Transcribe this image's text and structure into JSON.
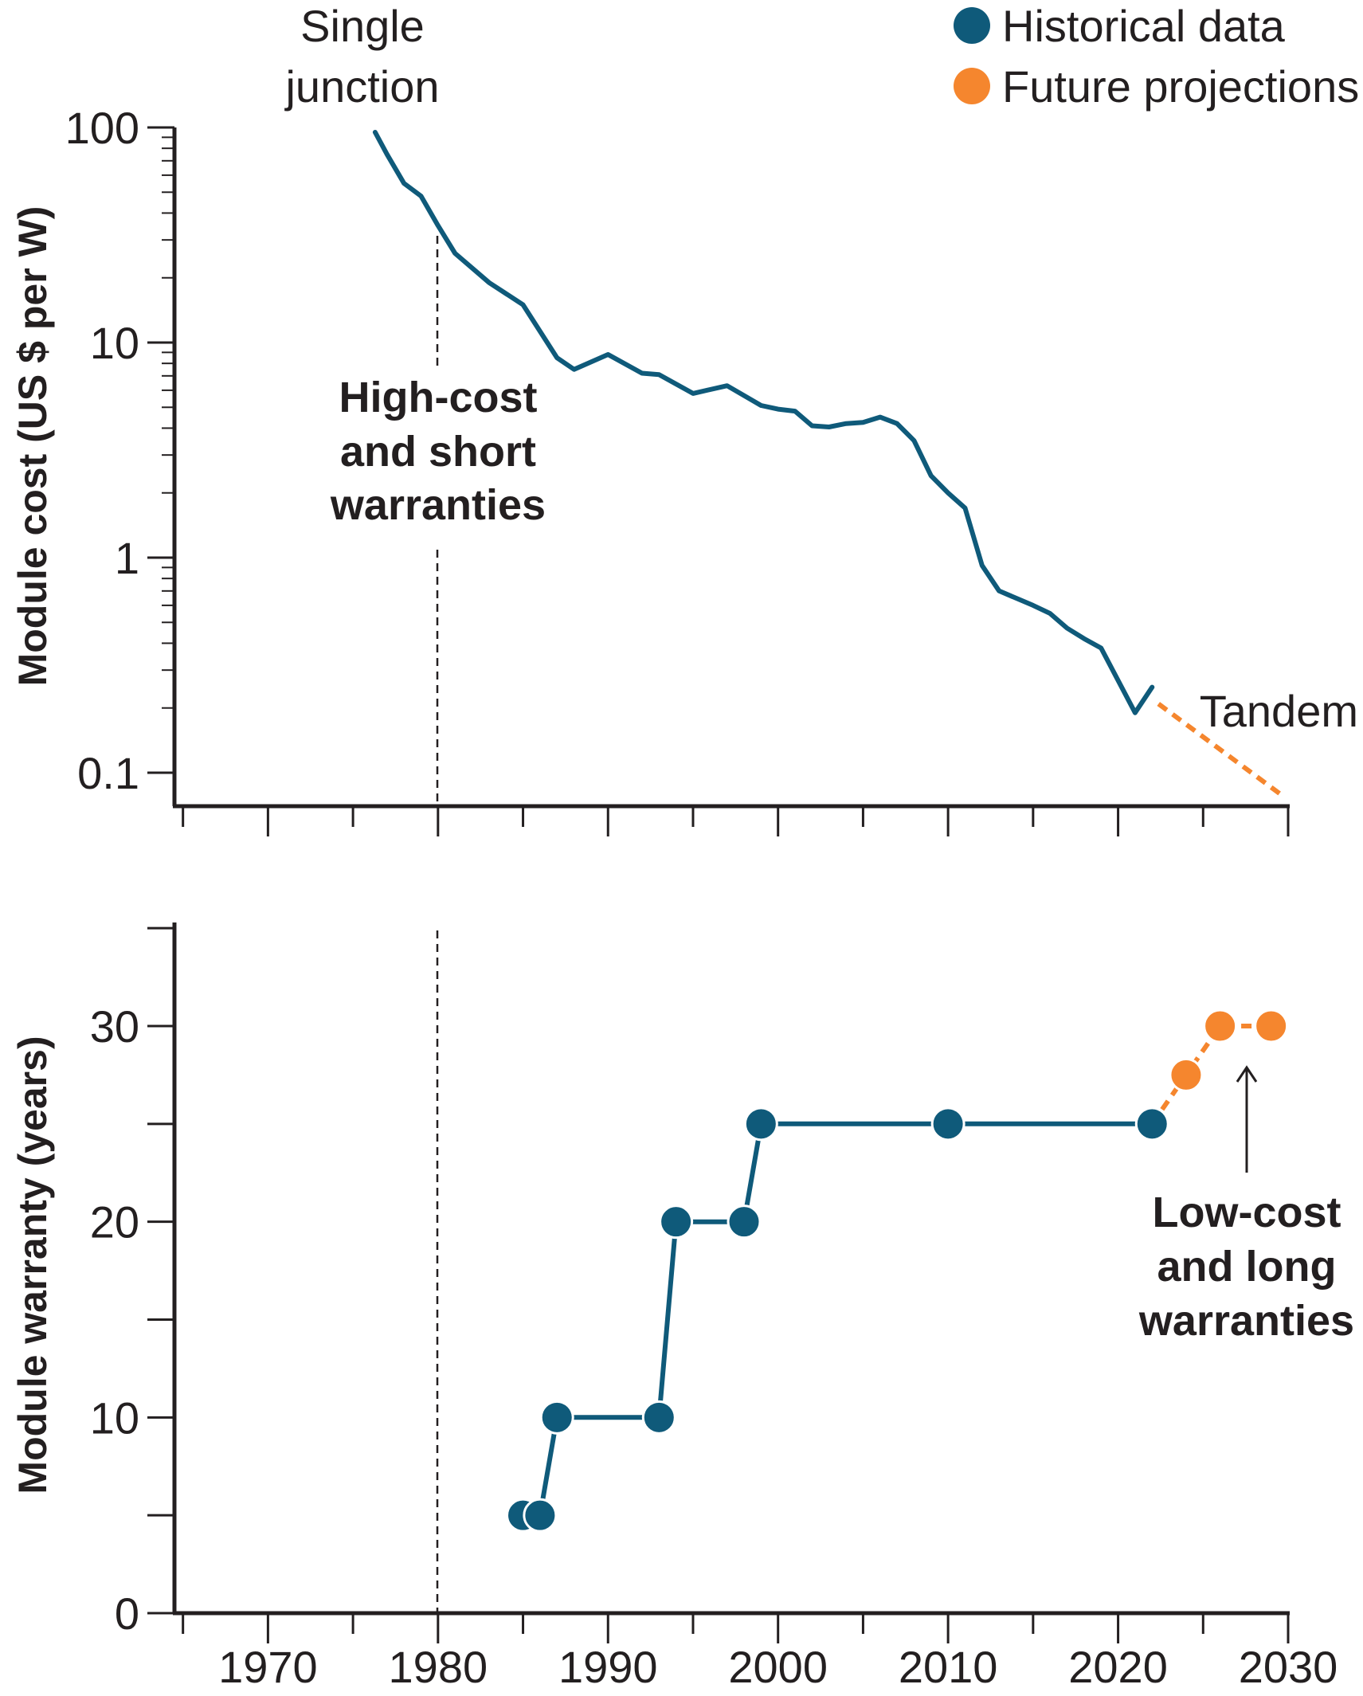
{
  "colors": {
    "historical": "#0f5a7a",
    "projection": "#f5862e",
    "ink": "#231f20"
  },
  "legend": [
    {
      "label": "Historical data",
      "color": "#0f5a7a"
    },
    {
      "label": "Future projections",
      "color": "#f5862e"
    }
  ],
  "legend_position": "top-right",
  "x_axis": {
    "ticks": [
      "1970",
      "1980",
      "1990",
      "2000",
      "2010",
      "2020",
      "2030"
    ],
    "range": [
      1964.5,
      2030
    ]
  },
  "annotations": {
    "single_junction": [
      "Single",
      "junction"
    ],
    "tandem": "Tandem",
    "high_cost": [
      "High-cost",
      "and short",
      "warranties"
    ],
    "low_cost": [
      "Low-cost",
      "and long",
      "warranties"
    ],
    "vline_year": 1980
  },
  "chart_data": [
    {
      "type": "line",
      "ylabel": "Module cost (US $ per W)",
      "yscale": "log",
      "ylim": [
        0.08,
        100
      ],
      "yticks": [
        "100",
        "10",
        "1",
        "0.1"
      ],
      "series": [
        {
          "name": "Historical data",
          "x": [
            1976.3,
            1977,
            1978,
            1979,
            1980,
            1981,
            1983,
            1985,
            1987,
            1988,
            1990,
            1992,
            1993,
            1995,
            1997,
            1999,
            2000,
            2001,
            2002,
            2003,
            2004,
            2005,
            2006,
            2007,
            2008,
            2009,
            2010,
            2011,
            2012,
            2013,
            2015,
            2016,
            2017,
            2018,
            2019,
            2021,
            2022
          ],
          "values": [
            95,
            75,
            55,
            48,
            35,
            26,
            19,
            15,
            8.5,
            7.5,
            8.8,
            7.2,
            7.1,
            5.8,
            6.3,
            5.1,
            4.9,
            4.8,
            4.1,
            4.05,
            4.2,
            4.25,
            4.5,
            4.2,
            3.5,
            2.4,
            2.0,
            1.7,
            0.92,
            0.7,
            0.6,
            0.55,
            0.47,
            0.42,
            0.38,
            0.19,
            0.25
          ]
        },
        {
          "name": "Future projections",
          "x": [
            2022,
            2029.5
          ],
          "values": [
            0.22,
            0.08
          ]
        }
      ]
    },
    {
      "type": "line",
      "ylabel": "Module warranty (years)",
      "ylim": [
        0,
        35
      ],
      "yticks": [
        "30",
        "20",
        "10",
        "0"
      ],
      "series": [
        {
          "name": "Historical data",
          "x": [
            1985,
            1986,
            1987,
            1993,
            1994,
            1998,
            1999,
            2010,
            2022
          ],
          "values": [
            5,
            5,
            10,
            10,
            20,
            20,
            25,
            25,
            25
          ]
        },
        {
          "name": "Future projections",
          "x": [
            2024,
            2026,
            2029
          ],
          "values": [
            27.5,
            30,
            30
          ]
        }
      ]
    }
  ]
}
